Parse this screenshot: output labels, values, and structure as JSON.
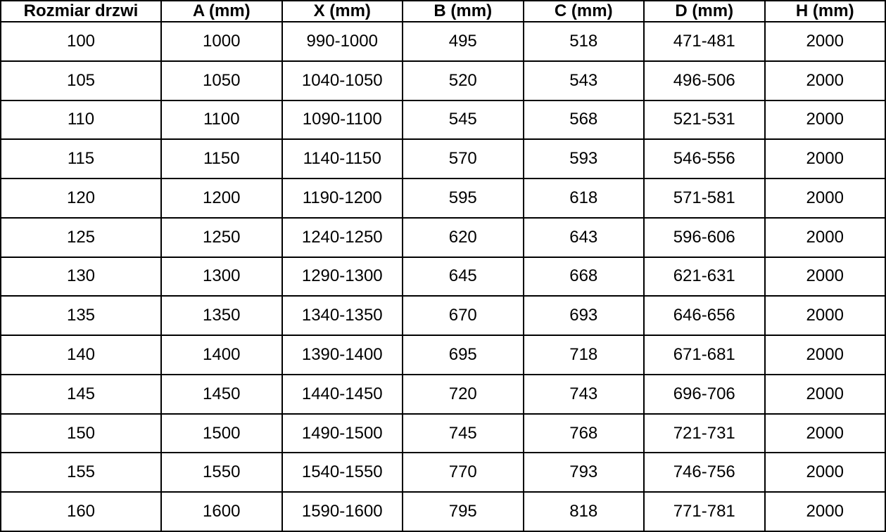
{
  "chart_data": {
    "type": "table",
    "title": "",
    "columns": [
      "Rozmiar drzwi",
      "A (mm)",
      "X (mm)",
      "B (mm)",
      "C (mm)",
      "D (mm)",
      "H (mm)"
    ],
    "rows": [
      [
        "100",
        "1000",
        "990-1000",
        "495",
        "518",
        "471-481",
        "2000"
      ],
      [
        "105",
        "1050",
        "1040-1050",
        "520",
        "543",
        "496-506",
        "2000"
      ],
      [
        "110",
        "1100",
        "1090-1100",
        "545",
        "568",
        "521-531",
        "2000"
      ],
      [
        "115",
        "1150",
        "1140-1150",
        "570",
        "593",
        "546-556",
        "2000"
      ],
      [
        "120",
        "1200",
        "1190-1200",
        "595",
        "618",
        "571-581",
        "2000"
      ],
      [
        "125",
        "1250",
        "1240-1250",
        "620",
        "643",
        "596-606",
        "2000"
      ],
      [
        "130",
        "1300",
        "1290-1300",
        "645",
        "668",
        "621-631",
        "2000"
      ],
      [
        "135",
        "1350",
        "1340-1350",
        "670",
        "693",
        "646-656",
        "2000"
      ],
      [
        "140",
        "1400",
        "1390-1400",
        "695",
        "718",
        "671-681",
        "2000"
      ],
      [
        "145",
        "1450",
        "1440-1450",
        "720",
        "743",
        "696-706",
        "2000"
      ],
      [
        "150",
        "1500",
        "1490-1500",
        "745",
        "768",
        "721-731",
        "2000"
      ],
      [
        "155",
        "1550",
        "1540-1550",
        "770",
        "793",
        "746-756",
        "2000"
      ],
      [
        "160",
        "1600",
        "1590-1600",
        "795",
        "818",
        "771-781",
        "2000"
      ]
    ],
    "layout": {
      "grid": "on",
      "header_row": true
    }
  },
  "colors": {
    "border": "#000000",
    "text": "#000000",
    "background": "#ffffff"
  }
}
